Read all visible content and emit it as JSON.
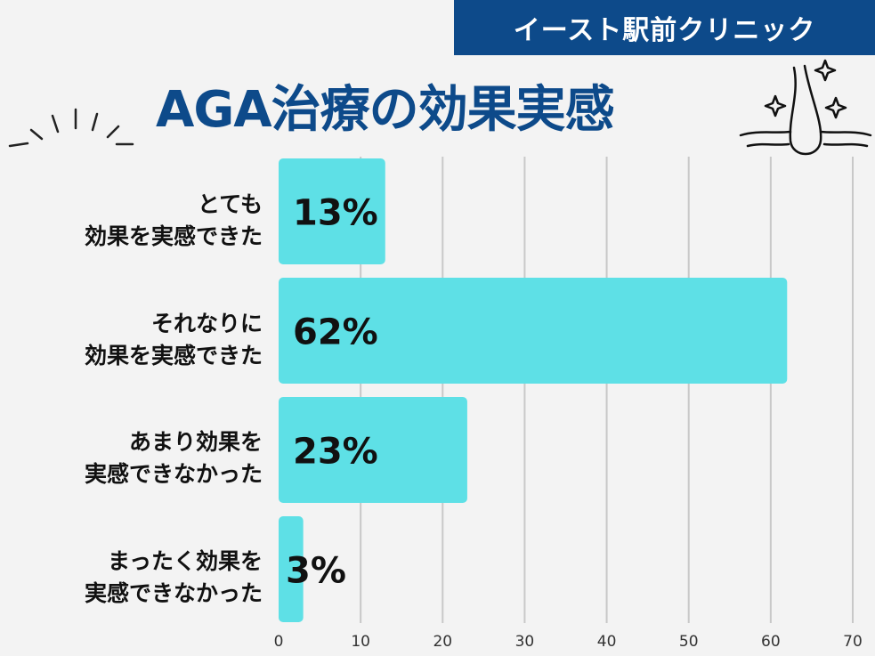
{
  "header": {
    "brand": "イースト駅前クリニック",
    "title": "AGA治療の効果実感"
  },
  "colors": {
    "banner": "#0d4a8a",
    "title": "#0d4a8a",
    "bar": "#5ee0e6",
    "grid": "#c8c8c8",
    "background": "#f3f3f3"
  },
  "decorations": {
    "left": "burst-lines-icon",
    "right": "hair-follicle-sparkle-icon"
  },
  "chart_data": {
    "type": "bar",
    "orientation": "horizontal",
    "categories": [
      [
        "とても",
        "効果を実感できた"
      ],
      [
        "それなりに",
        "効果を実感できた"
      ],
      [
        "あまり効果を",
        "実感できなかった"
      ],
      [
        "まったく効果を",
        "実感できなかった"
      ]
    ],
    "values": [
      13,
      62,
      23,
      3
    ],
    "value_labels": [
      "13%",
      "62%",
      "23%",
      "3%"
    ],
    "xlim": [
      0,
      70
    ],
    "xticks": [
      "0",
      "10",
      "20",
      "30",
      "40",
      "50",
      "60",
      "70"
    ],
    "grid": true,
    "legend": "none"
  }
}
